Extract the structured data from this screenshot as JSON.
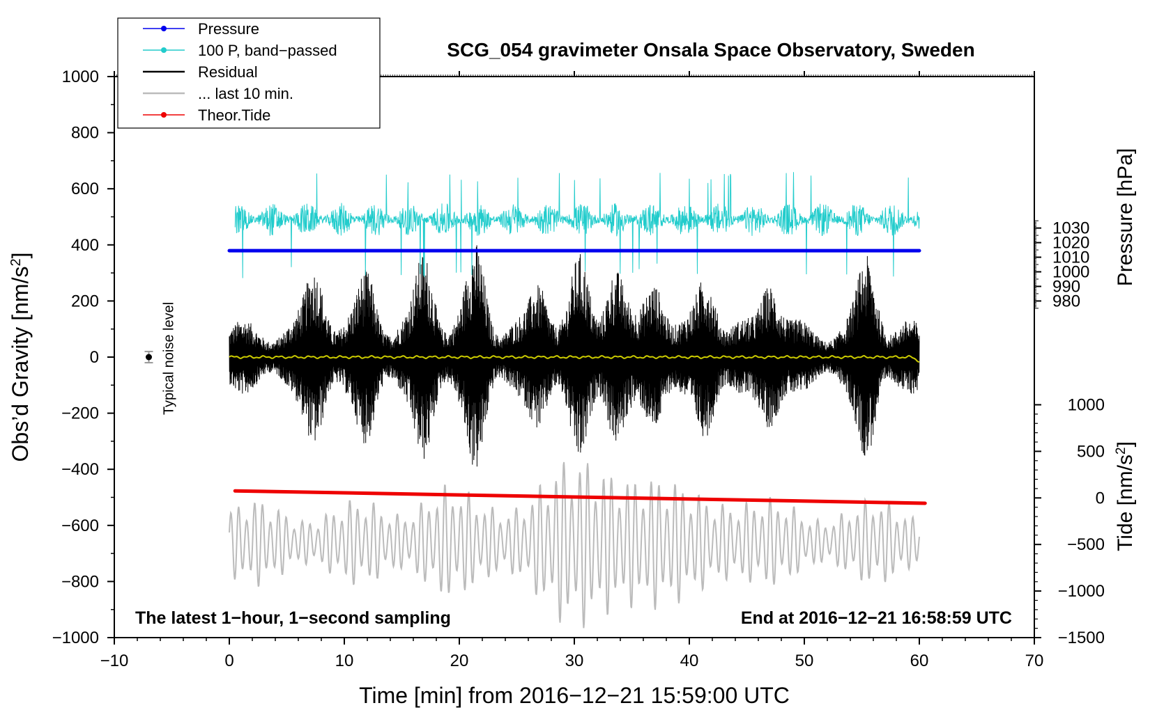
{
  "chart_data": {
    "type": "line",
    "title": "SCG_054 gravimeter Onsala Space Observatory, Sweden",
    "xlabel": "Time [min] from 2016−12−21 15:59:00 UTC",
    "ylabel": "Obs’d Gravity [nm/s",
    "ylabel_sup": "2",
    "ylabel_end": "]",
    "y2label": "Pressure [hPa]",
    "y3label": "Tide [nm/s",
    "y3label_sup": "2",
    "y3label_end": "]",
    "xlim": [
      -10,
      70
    ],
    "ylim": [
      -1000,
      1000
    ],
    "x_ticks": [
      -10,
      0,
      10,
      20,
      30,
      40,
      50,
      60,
      70
    ],
    "x_tick_labels": [
      "−10",
      "0",
      "10",
      "20",
      "30",
      "40",
      "50",
      "60",
      "70"
    ],
    "y_ticks": [
      -1000,
      -800,
      -600,
      -400,
      -200,
      0,
      200,
      400,
      600,
      800,
      1000
    ],
    "y_tick_labels": [
      "−1000",
      "−800",
      "−600",
      "−400",
      "−200",
      "0",
      "200",
      "400",
      "600",
      "800",
      "1000"
    ],
    "pressure_axis": {
      "ticks": [
        980,
        990,
        1000,
        1010,
        1020,
        1030
      ],
      "tick_labels": [
        "980",
        "990",
        "1000",
        "1010",
        "1020",
        "1030"
      ],
      "map_to_gravity": {
        "pressure": [
          980,
          1030
        ],
        "gravity": [
          200,
          460
        ]
      }
    },
    "tide_axis": {
      "ticks": [
        -1500,
        -1000,
        -500,
        0,
        500,
        1000
      ],
      "tick_labels": [
        "−1500",
        "−1000",
        "−500",
        "0",
        "500",
        "1000"
      ],
      "map_to_gravity": {
        "tide": [
          -1500,
          1000
        ],
        "gravity": [
          -1000,
          -170
        ]
      }
    },
    "legend": {
      "position": "top-left",
      "entries": [
        {
          "label": "Pressure",
          "color": "#0000ee",
          "marker": true
        },
        {
          "label": "100 P, band−passed",
          "color": "#22cccc",
          "marker": true
        },
        {
          "label": "Residual",
          "color": "#000000",
          "marker": false
        },
        {
          "label": "... last 10 min.",
          "color": "#bbbbbb",
          "marker": false
        },
        {
          "label": "Theor.Tide",
          "color": "#ee0000",
          "marker": true
        }
      ]
    },
    "series": [
      {
        "name": "Pressure",
        "unit": "hPa",
        "color": "#0000ee",
        "x": [
          0,
          60
        ],
        "values": [
          1014.5,
          1014.5
        ]
      },
      {
        "name": "100 P, band−passed",
        "unit": "nm/s2",
        "color": "#22cccc",
        "x_range": [
          0.5,
          60
        ],
        "center": 490,
        "typical_amplitude": 60,
        "spike_max": 660,
        "spike_min": 280
      },
      {
        "name": "Residual",
        "unit": "nm/s2",
        "color": "#000000",
        "x_range": [
          0,
          60
        ],
        "center": 0,
        "envelope_peaks_x": [
          7.5,
          12,
          17,
          21.5,
          27,
          30.5,
          33.5,
          37,
          41.5,
          47,
          55.5
        ],
        "envelope_peaks_y": [
          330,
          310,
          380,
          400,
          280,
          340,
          330,
          300,
          310,
          300,
          360
        ]
      },
      {
        "name": "Residual smoothed",
        "unit": "nm/s2",
        "color": "#cccc00",
        "x_range": [
          0,
          60
        ],
        "center": 0
      },
      {
        "name": "... last 10 min.",
        "unit": "nm/s2",
        "color": "#bbbbbb",
        "x_range": [
          0,
          60
        ],
        "center": -660,
        "max_amplitude": 310
      },
      {
        "name": "Theor.Tide",
        "unit": "nm/s2",
        "color": "#ee0000",
        "x": [
          0.5,
          60.5
        ],
        "values": [
          -477,
          -521
        ]
      }
    ],
    "noise_marker": {
      "x": -7,
      "y": 0,
      "error": 20,
      "label": "Typical noise level"
    },
    "annotations": {
      "bottom_left": "The latest 1−hour, 1−second sampling",
      "bottom_right": "End at 2016−12−21 16:58:59 UTC"
    }
  }
}
